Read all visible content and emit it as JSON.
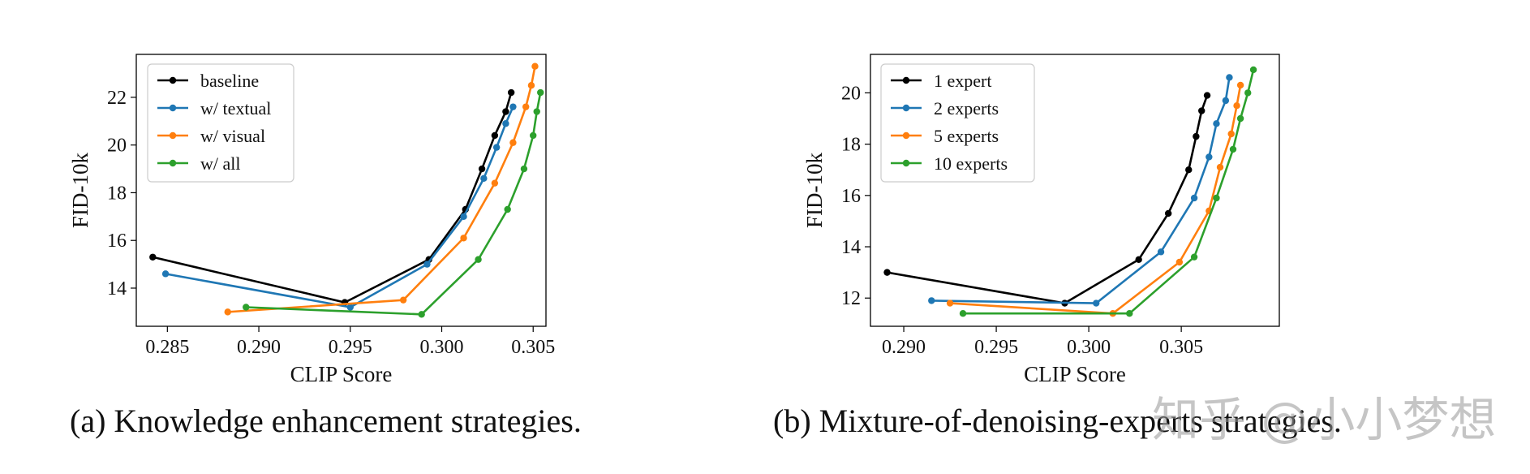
{
  "captions": {
    "a": "(a) Knowledge enhancement strategies.",
    "b": "(b) Mixture-of-denoising-experts strategies."
  },
  "watermark": "知乎 @小小梦想",
  "chart_data": [
    {
      "type": "line",
      "title": "",
      "xlabel": "CLIP Score",
      "ylabel": "FID-10k",
      "xlim": [
        0.2833,
        0.3057
      ],
      "ylim": [
        12.4,
        23.8
      ],
      "xticks": [
        0.285,
        0.29,
        0.295,
        0.3,
        0.305
      ],
      "xtick_labels": [
        "0.285",
        "0.290",
        "0.295",
        "0.300",
        "0.305"
      ],
      "yticks": [
        14,
        16,
        18,
        20,
        22
      ],
      "ytick_labels": [
        "14",
        "16",
        "18",
        "20",
        "22"
      ],
      "grid": false,
      "legend_position": "top-left",
      "series": [
        {
          "name": "baseline",
          "color": "#000000",
          "x": [
            0.2842,
            0.2947,
            0.2993,
            0.3013,
            0.3022,
            0.3029,
            0.3035,
            0.3038
          ],
          "y": [
            15.3,
            13.4,
            15.2,
            17.3,
            19.0,
            20.4,
            21.4,
            22.2
          ]
        },
        {
          "name": "w/ textual",
          "color": "#1f77b4",
          "x": [
            0.2849,
            0.295,
            0.2992,
            0.3012,
            0.3023,
            0.303,
            0.3035,
            0.3039
          ],
          "y": [
            14.6,
            13.2,
            15.0,
            17.0,
            18.6,
            19.9,
            20.9,
            21.6
          ]
        },
        {
          "name": "w/ visual",
          "color": "#ff7f0e",
          "x": [
            0.2883,
            0.2979,
            0.3012,
            0.3029,
            0.3039,
            0.3046,
            0.3049,
            0.3051
          ],
          "y": [
            13.0,
            13.5,
            16.1,
            18.4,
            20.1,
            21.6,
            22.5,
            23.3
          ]
        },
        {
          "name": "w/ all",
          "color": "#2ca02c",
          "x": [
            0.2893,
            0.2989,
            0.302,
            0.3036,
            0.3045,
            0.305,
            0.3052,
            0.3054
          ],
          "y": [
            13.2,
            12.9,
            15.2,
            17.3,
            19.0,
            20.4,
            21.4,
            22.2
          ]
        }
      ]
    },
    {
      "type": "line",
      "title": "",
      "xlabel": "CLIP Score",
      "ylabel": "FID-10k",
      "xlim": [
        0.2882,
        0.3103
      ],
      "ylim": [
        10.9,
        21.5
      ],
      "xticks": [
        0.29,
        0.295,
        0.3,
        0.305
      ],
      "xtick_labels": [
        "0.290",
        "0.295",
        "0.300",
        "0.305"
      ],
      "yticks": [
        12,
        14,
        16,
        18,
        20
      ],
      "ytick_labels": [
        "12",
        "14",
        "16",
        "18",
        "20"
      ],
      "grid": false,
      "legend_position": "top-left",
      "series": [
        {
          "name": "1 expert",
          "color": "#000000",
          "x": [
            0.2891,
            0.2987,
            0.3027,
            0.3043,
            0.3054,
            0.3058,
            0.3061,
            0.3064
          ],
          "y": [
            13.0,
            11.8,
            13.5,
            15.3,
            17.0,
            18.3,
            19.3,
            19.9
          ]
        },
        {
          "name": "2 experts",
          "color": "#1f77b4",
          "x": [
            0.2915,
            0.3004,
            0.3039,
            0.3057,
            0.3065,
            0.3069,
            0.3074,
            0.3076
          ],
          "y": [
            11.9,
            11.8,
            13.8,
            15.9,
            17.5,
            18.8,
            19.7,
            20.6
          ]
        },
        {
          "name": "5 experts",
          "color": "#ff7f0e",
          "x": [
            0.2925,
            0.3013,
            0.3049,
            0.3065,
            0.3071,
            0.3077,
            0.308,
            0.3082
          ],
          "y": [
            11.8,
            11.4,
            13.4,
            15.4,
            17.1,
            18.4,
            19.5,
            20.3
          ]
        },
        {
          "name": "10 experts",
          "color": "#2ca02c",
          "x": [
            0.2932,
            0.3022,
            0.3057,
            0.3069,
            0.3078,
            0.3082,
            0.3086,
            0.3089
          ],
          "y": [
            11.4,
            11.4,
            13.6,
            15.9,
            17.8,
            19.0,
            20.0,
            20.9
          ]
        }
      ]
    }
  ]
}
